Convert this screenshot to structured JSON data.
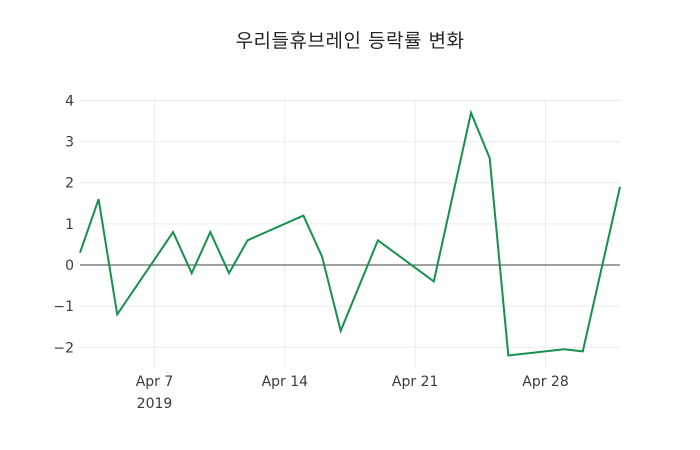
{
  "chart_data": {
    "type": "line",
    "title": "우리들휴브레인 등락률 변화",
    "xlabel": "",
    "ylabel": "",
    "grid": true,
    "legend": "none",
    "zero_line": true,
    "x_range": [
      "2019-04-03",
      "2019-05-02"
    ],
    "ylim": [
      -2.48,
      4.06
    ],
    "series": [
      {
        "color": "#15914e",
        "x": [
          "2019-04-03",
          "2019-04-04",
          "2019-04-05",
          "2019-04-08",
          "2019-04-09",
          "2019-04-10",
          "2019-04-11",
          "2019-04-12",
          "2019-04-15",
          "2019-04-16",
          "2019-04-17",
          "2019-04-18",
          "2019-04-19",
          "2019-04-22",
          "2019-04-23",
          "2019-04-24",
          "2019-04-25",
          "2019-04-26",
          "2019-04-29",
          "2019-04-30",
          "2019-05-02"
        ],
        "values": [
          0.3,
          1.6,
          -1.2,
          0.8,
          -0.2,
          0.8,
          -0.2,
          0.6,
          1.2,
          0.2,
          -1.6,
          -0.5,
          0.6,
          -0.4,
          1.65,
          3.7,
          2.6,
          -2.2,
          -2.05,
          -2.1,
          1.9
        ]
      }
    ],
    "y_ticks": [
      {
        "value": 4,
        "label": "4"
      },
      {
        "value": 3,
        "label": "3"
      },
      {
        "value": 2,
        "label": "2"
      },
      {
        "value": 1,
        "label": "1"
      },
      {
        "value": 0,
        "label": "0"
      },
      {
        "value": -1,
        "label": "−1"
      },
      {
        "value": -2,
        "label": "−2"
      }
    ],
    "x_ticks": [
      {
        "date": "2019-04-07",
        "label": "Apr 7",
        "sublabel": "2019"
      },
      {
        "date": "2019-04-14",
        "label": "Apr 14",
        "sublabel": ""
      },
      {
        "date": "2019-04-21",
        "label": "Apr 21",
        "sublabel": ""
      },
      {
        "date": "2019-04-28",
        "label": "Apr 28",
        "sublabel": ""
      }
    ],
    "colors": {
      "background": "#ffffff",
      "grid": "#ebebeb",
      "zero_line": "#404040",
      "tick_text": "#3b3b3b",
      "title_text": "#262626"
    }
  }
}
